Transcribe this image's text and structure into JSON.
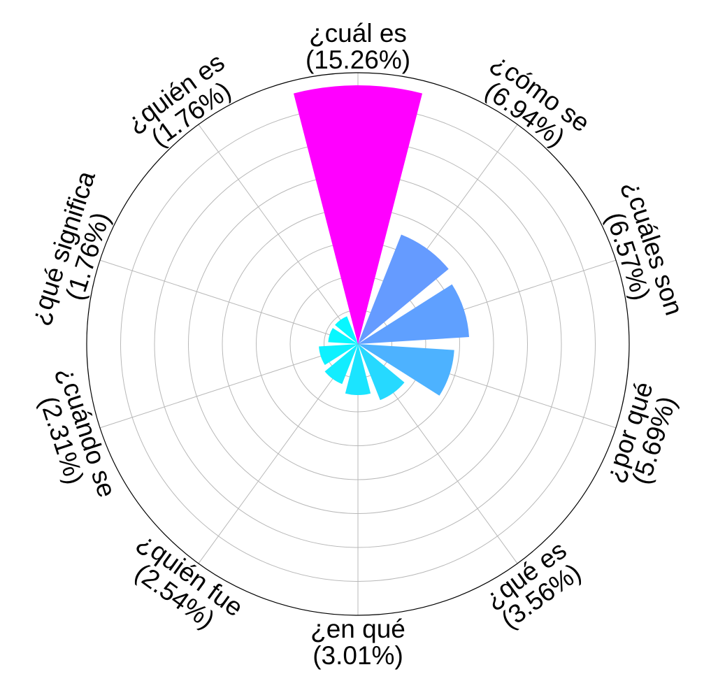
{
  "chart_data": {
    "type": "polar-bar",
    "title": "",
    "categories": [
      "¿cuál es",
      "¿cómo se",
      "¿cuáles son",
      "¿por qué",
      "¿qué es",
      "¿en qué",
      "¿quién fue",
      "¿cuándo se",
      "¿qué significa",
      "¿quién es"
    ],
    "percent_labels": [
      "(15.26%)",
      "(6.94%)",
      "(6.57%)",
      "(5.69%)",
      "(3.56%)",
      "(3.01%)",
      "(2.54%)",
      "(2.31%)",
      "(1.76%)",
      "(1.76%)"
    ],
    "values": [
      15.26,
      6.94,
      6.57,
      5.69,
      3.56,
      3.01,
      2.54,
      2.31,
      1.76,
      1.76
    ],
    "colors": [
      "#ff00ff",
      "#659bff",
      "#5fa0ff",
      "#4db2ff",
      "#26d9ff",
      "#1be4ff",
      "#12edff",
      "#0ef1ff",
      "#08f7ff",
      "#08f7ff"
    ],
    "radial_range": [
      0,
      16
    ],
    "angular_direction": "clockwise",
    "start_angle": "top",
    "grid": true
  }
}
